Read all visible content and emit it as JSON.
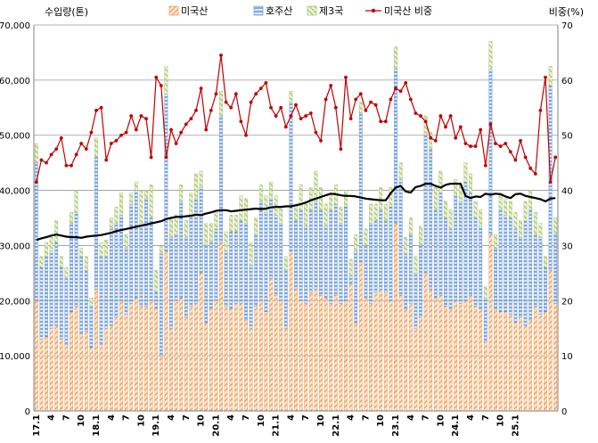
{
  "chart_data": {
    "type": "bar",
    "stacked": true,
    "left_axis": {
      "label": "수입량(톤)",
      "min": 0,
      "max": 70000,
      "ticks": [
        0,
        10000,
        20000,
        30000,
        40000,
        50000,
        60000,
        70000
      ],
      "tick_labels": [
        "0",
        "10,000",
        "20,000",
        "30,000",
        "40,000",
        "50,000",
        "60,000",
        "70,000"
      ]
    },
    "right_axis": {
      "label": "비중(%)",
      "min": 0,
      "max": 70,
      "ticks": [
        0,
        10,
        20,
        30,
        40,
        50,
        60,
        70
      ],
      "tick_labels": [
        "0",
        "10",
        "20",
        "30",
        "40",
        "50",
        "60",
        "70"
      ]
    },
    "x_labels": [
      "17.1",
      "4",
      "7",
      "10",
      "18.1",
      "4",
      "7",
      "10",
      "19.1",
      "4",
      "7",
      "10",
      "20.1",
      "4",
      "7",
      "10",
      "21.1",
      "4",
      "7",
      "10",
      "22.1",
      "4",
      "7",
      "10",
      "23.1",
      "4",
      "7",
      "10",
      "24.1",
      "4",
      "7",
      "10",
      "25.1"
    ],
    "grid": true,
    "legend_position": "top",
    "series": [
      {
        "name": "미국산",
        "axis": "left",
        "color": "#E8924A",
        "values": [
          20000,
          13000,
          13500,
          15000,
          15500,
          13000,
          12000,
          18000,
          19000,
          14000,
          14500,
          11500,
          22000,
          12000,
          15000,
          15500,
          17000,
          20000,
          17500,
          19500,
          20500,
          19000,
          19000,
          20000,
          18500,
          10000,
          29000,
          15000,
          20000,
          20500,
          17000,
          19000,
          19500,
          25000,
          16000,
          18500,
          20000,
          30500,
          19000,
          18500,
          19500,
          19500,
          16500,
          15000,
          19000,
          20000,
          18000,
          24000,
          21000,
          20000,
          15000,
          29000,
          22000,
          20000,
          19500,
          21500,
          22000,
          21000,
          20500,
          19500,
          21000,
          19500,
          20000,
          23000,
          16000,
          27000,
          20500,
          19500,
          21500,
          22000,
          21500,
          20000,
          34000,
          21000,
          18500,
          19500,
          15000,
          17000,
          25000,
          22000,
          20500,
          21000,
          19000,
          18500,
          20000,
          19500,
          20000,
          21000,
          19000,
          18500,
          12500,
          32000,
          18500,
          18000,
          18000,
          17500,
          16000,
          17000,
          15500,
          16500,
          19000,
          17500,
          18000,
          25500,
          19500
        ]
      },
      {
        "name": "호주산",
        "axis": "left",
        "color": "#5B8FD4",
        "values": [
          25000,
          13000,
          14500,
          14000,
          15000,
          13000,
          12000,
          16000,
          17000,
          14000,
          11000,
          7500,
          24000,
          16000,
          13000,
          17500,
          17000,
          15500,
          12000,
          18000,
          19500,
          15000,
          19500,
          15000,
          3000,
          18500,
          28500,
          16500,
          12000,
          17500,
          14500,
          16500,
          19000,
          15500,
          14000,
          12000,
          13000,
          23000,
          10000,
          14000,
          13000,
          15000,
          17500,
          11500,
          13000,
          18000,
          18000,
          14500,
          14500,
          14000,
          10500,
          27000,
          12500,
          16500,
          14000,
          15000,
          16000,
          15500,
          13000,
          17000,
          16500,
          14500,
          17000,
          1500,
          13000,
          27000,
          9500,
          14500,
          13000,
          14500,
          13000,
          17000,
          28000,
          21000,
          10000,
          12500,
          10000,
          13000,
          25000,
          25500,
          16000,
          18500,
          16000,
          14500,
          19000,
          18500,
          21500,
          18500,
          16000,
          15000,
          8000,
          30000,
          11000,
          18500,
          17500,
          17500,
          17000,
          14500,
          19000,
          20000,
          13000,
          14000,
          8000,
          33500,
          12500
        ]
      },
      {
        "name": "제3국",
        "axis": "left",
        "color": "#9DBB5A",
        "values": [
          3500,
          2000,
          2500,
          2500,
          4000,
          2000,
          2000,
          2000,
          4000,
          1500,
          2500,
          1500,
          3500,
          2500,
          3000,
          2000,
          3000,
          4000,
          2500,
          2000,
          1500,
          6000,
          1500,
          6000,
          4000,
          1500,
          5000,
          3500,
          3500,
          3000,
          3000,
          4000,
          4500,
          3000,
          4000,
          3500,
          3000,
          4500,
          3500,
          3000,
          3000,
          4500,
          4500,
          4000,
          3000,
          3000,
          3000,
          3000,
          3500,
          3000,
          2500,
          2000,
          3000,
          4500,
          4000,
          4000,
          5500,
          4000,
          4000,
          3000,
          3500,
          3000,
          3000,
          3000,
          3000,
          2000,
          3000,
          3500,
          3000,
          4000,
          3000,
          3500,
          4000,
          3000,
          3000,
          3000,
          3000,
          3500,
          3500,
          3000,
          4000,
          4000,
          3000,
          3500,
          3000,
          3000,
          3500,
          3500,
          3000,
          3000,
          2000,
          5000,
          2500,
          3000,
          3000,
          3000,
          3000,
          3000,
          3500,
          3500,
          4000,
          2500,
          2000,
          3500,
          3000
        ]
      },
      {
        "name": "미국산 비중",
        "type": "line",
        "axis": "right",
        "color": "#C00000",
        "values": [
          41.5,
          45.5,
          45.0,
          46.5,
          47.5,
          49.5,
          44.5,
          44.5,
          46.5,
          48.5,
          47.5,
          50.5,
          54.5,
          55.0,
          45.5,
          48.5,
          49.0,
          50.0,
          50.5,
          53.5,
          51.0,
          53.5,
          53.0,
          46.0,
          60.5,
          59.0,
          46.0,
          51.0,
          48.5,
          50.5,
          52.0,
          53.0,
          54.5,
          58.5,
          51.0,
          54.5,
          57.5,
          64.5,
          56.0,
          55.0,
          57.5,
          52.5,
          50.0,
          56.0,
          57.5,
          58.5,
          59.5,
          55.0,
          53.5,
          55.0,
          51.5,
          53.5,
          55.5,
          53.0,
          53.5,
          54.0,
          50.5,
          49.0,
          56.5,
          59.0,
          55.0,
          47.5,
          60.5,
          53.0,
          56.5,
          57.5,
          54.5,
          56.0,
          55.5,
          52.5,
          52.5,
          56.5,
          58.5,
          58.0,
          59.5,
          56.5,
          54.0,
          53.5,
          52.5,
          49.5,
          49.0,
          53.5,
          51.5,
          53.5,
          49.5,
          51.5,
          48.5,
          48.0,
          48.0,
          51.0,
          44.5,
          52.0,
          48.5,
          48.0,
          48.5,
          47.0,
          45.5,
          49.0,
          46.0,
          44.0,
          43.0,
          54.5,
          60.5,
          41.5,
          46.0
        ]
      },
      {
        "name": "",
        "type": "line",
        "axis": "right",
        "color": "#000000",
        "values": [
          31.0,
          31.3,
          31.5,
          31.8,
          32.0,
          31.8,
          31.6,
          31.5,
          31.5,
          31.4,
          31.6,
          31.7,
          31.8,
          31.9,
          32.1,
          32.3,
          32.6,
          32.8,
          33.0,
          33.2,
          33.4,
          33.6,
          33.8,
          34.0,
          34.2,
          34.4,
          34.8,
          35.0,
          35.2,
          35.2,
          35.3,
          35.4,
          35.6,
          35.5,
          35.8,
          36.0,
          36.3,
          36.4,
          36.4,
          36.2,
          36.3,
          36.4,
          36.5,
          36.6,
          36.7,
          36.6,
          36.7,
          36.9,
          37.0,
          37.0,
          37.1,
          37.1,
          37.3,
          37.5,
          37.8,
          38.2,
          38.5,
          38.8,
          39.1,
          39.4,
          39.3,
          39.1,
          39.0,
          39.0,
          38.9,
          38.7,
          38.5,
          38.4,
          38.3,
          38.2,
          38.2,
          39.5,
          40.5,
          40.8,
          39.8,
          39.6,
          40.6,
          40.8,
          41.2,
          41.2,
          40.8,
          40.5,
          41.0,
          41.2,
          41.2,
          41.2,
          39.0,
          38.6,
          38.9,
          38.8,
          39.4,
          39.2,
          39.4,
          39.3,
          38.9,
          38.6,
          39.3,
          39.4,
          39.0,
          38.8,
          38.6,
          38.4,
          38.0,
          38.5,
          38.6
        ]
      }
    ]
  }
}
